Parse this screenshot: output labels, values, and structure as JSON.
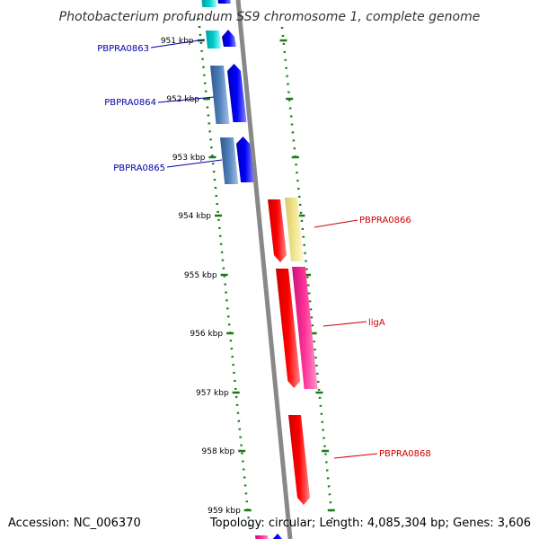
{
  "title": "Photobacterium profundum SS9 chromosome 1, complete genome",
  "accession": "Accession: NC_006370",
  "topology": "Topology: circular; Length: 4,085,304 bp; Genes: 3,606",
  "ticks": [
    {
      "label": "951 kbp"
    },
    {
      "label": "952 kbp"
    },
    {
      "label": "953 kbp"
    },
    {
      "label": "954 kbp"
    },
    {
      "label": "955 kbp"
    },
    {
      "label": "956 kbp"
    },
    {
      "label": "957 kbp"
    },
    {
      "label": "958 kbp"
    },
    {
      "label": "959 kbp"
    }
  ],
  "genes": [
    {
      "label": "PBPRA0863",
      "strand": "reverse",
      "label_color": "#0000aa"
    },
    {
      "label": "PBPRA0864",
      "strand": "reverse",
      "label_color": "#0000aa"
    },
    {
      "label": "PBPRA0865",
      "strand": "reverse",
      "label_color": "#0000aa"
    },
    {
      "label": "PBPRA0866",
      "strand": "forward",
      "label_color": "#cc0000"
    },
    {
      "label": "ligA",
      "strand": "forward",
      "label_color": "#cc0000"
    },
    {
      "label": "PBPRA0868",
      "strand": "forward",
      "label_color": "#cc0000"
    }
  ],
  "colors": {
    "backbone": "#888888",
    "tick": "#1a7a1a",
    "gene_reverse": "#0000ff",
    "gene_forward": "#ff0000",
    "cds_reverse": "#4f81bd",
    "cds_forward": "#ff3399",
    "cds_forward_light": "#f0e68c",
    "cyan": "#00cccc"
  }
}
